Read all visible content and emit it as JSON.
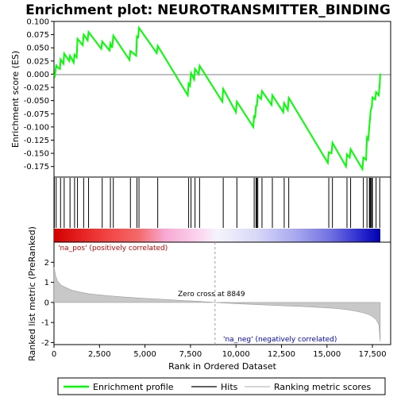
{
  "chart_data": {
    "type": "line",
    "title": "Enrichment plot: NEUROTRANSMITTER_BINDING",
    "top_panel": {
      "ylabel": "Enrichment score (ES)",
      "ylim": [
        -0.195,
        0.1
      ],
      "yticks": [
        -0.175,
        -0.15,
        -0.125,
        -0.1,
        -0.075,
        -0.05,
        -0.025,
        0.0,
        0.025,
        0.05,
        0.075,
        0.1
      ],
      "ytick_labels": [
        "-0.175",
        "-0.150",
        "-0.125",
        "-0.100",
        "-0.075",
        "-0.050",
        "-0.025",
        "0.000",
        "0.025",
        "0.050",
        "0.075",
        "0.100"
      ],
      "series_name": "Enrichment profile",
      "color": "#00ff00",
      "es_curve": [
        [
          0,
          0.0
        ],
        [
          50,
          -0.003
        ],
        [
          120,
          0.018
        ],
        [
          180,
          0.013
        ],
        [
          330,
          0.01
        ],
        [
          360,
          0.028
        ],
        [
          520,
          0.02
        ],
        [
          560,
          0.039
        ],
        [
          840,
          0.025
        ],
        [
          880,
          0.035
        ],
        [
          1080,
          0.022
        ],
        [
          1130,
          0.037
        ],
        [
          1250,
          0.032
        ],
        [
          1290,
          0.067
        ],
        [
          1580,
          0.055
        ],
        [
          1630,
          0.075
        ],
        [
          1850,
          0.064
        ],
        [
          1900,
          0.08
        ],
        [
          2600,
          0.048
        ],
        [
          2650,
          0.062
        ],
        [
          3050,
          0.045
        ],
        [
          3100,
          0.058
        ],
        [
          3200,
          0.05
        ],
        [
          3260,
          0.073
        ],
        [
          4150,
          0.027
        ],
        [
          4200,
          0.044
        ],
        [
          4520,
          0.035
        ],
        [
          4560,
          0.073
        ],
        [
          4620,
          0.068
        ],
        [
          4670,
          0.088
        ],
        [
          5650,
          0.04
        ],
        [
          5700,
          0.054
        ],
        [
          7350,
          -0.04
        ],
        [
          7400,
          -0.018
        ],
        [
          7480,
          -0.022
        ],
        [
          7530,
          0.002
        ],
        [
          7700,
          -0.01
        ],
        [
          7750,
          0.01
        ],
        [
          7950,
          0.0
        ],
        [
          8000,
          0.016
        ],
        [
          9250,
          -0.052
        ],
        [
          9300,
          -0.028
        ],
        [
          10000,
          -0.072
        ],
        [
          10050,
          -0.052
        ],
        [
          10950,
          -0.1
        ],
        [
          11000,
          -0.078
        ],
        [
          11050,
          -0.083
        ],
        [
          11100,
          -0.06
        ],
        [
          11150,
          -0.06
        ],
        [
          11200,
          -0.04
        ],
        [
          11380,
          -0.047
        ],
        [
          11430,
          -0.032
        ],
        [
          11950,
          -0.058
        ],
        [
          12000,
          -0.04
        ],
        [
          12600,
          -0.072
        ],
        [
          12650,
          -0.055
        ],
        [
          12850,
          -0.068
        ],
        [
          12900,
          -0.045
        ],
        [
          15050,
          -0.168
        ],
        [
          15100,
          -0.148
        ],
        [
          15250,
          -0.15
        ],
        [
          15300,
          -0.13
        ],
        [
          16050,
          -0.175
        ],
        [
          16100,
          -0.152
        ],
        [
          16250,
          -0.158
        ],
        [
          16300,
          -0.142
        ],
        [
          16950,
          -0.18
        ],
        [
          17000,
          -0.158
        ],
        [
          17150,
          -0.162
        ],
        [
          17200,
          -0.12
        ],
        [
          17270,
          -0.124
        ],
        [
          17330,
          -0.098
        ],
        [
          17370,
          -0.083
        ],
        [
          17400,
          -0.07
        ],
        [
          17460,
          -0.062
        ],
        [
          17500,
          -0.044
        ],
        [
          17650,
          -0.048
        ],
        [
          17700,
          -0.034
        ],
        [
          17850,
          -0.04
        ],
        [
          17900,
          -0.018
        ],
        [
          17930,
          0.001
        ]
      ]
    },
    "hits_panel": {
      "series_name": "Hits",
      "positions": [
        20,
        120,
        360,
        560,
        880,
        1130,
        1290,
        1630,
        1900,
        2650,
        3100,
        3260,
        4200,
        4560,
        4670,
        5700,
        7400,
        7530,
        7750,
        8000,
        9300,
        10050,
        11000,
        11100,
        11150,
        11200,
        11430,
        12000,
        12650,
        12900,
        15100,
        15300,
        16100,
        16300,
        17000,
        17200,
        17330,
        17370,
        17400,
        17460,
        17500,
        17700,
        17900
      ]
    },
    "rank_panel": {
      "series_name": "Ranking metric scores",
      "xlabel": "Rank in Ordered Dataset",
      "ylabel": "Ranked list metric (PreRanked)",
      "xlim": [
        0,
        18500
      ],
      "ylim": [
        -2.1,
        3.0
      ],
      "xticks": [
        0,
        2500,
        5000,
        7500,
        10000,
        12500,
        15000,
        17500
      ],
      "xtick_labels": [
        "0",
        "2,500",
        "5,000",
        "7,500",
        "10,000",
        "12,500",
        "15,000",
        "17,500"
      ],
      "yticks": [
        -2,
        -1,
        0,
        1,
        2
      ],
      "ytick_labels": [
        "-2",
        "-1",
        "0",
        "1",
        "2"
      ],
      "metric_curve": [
        [
          0,
          1.75
        ],
        [
          100,
          1.3
        ],
        [
          200,
          1.05
        ],
        [
          400,
          0.85
        ],
        [
          700,
          0.72
        ],
        [
          1000,
          0.6
        ],
        [
          1500,
          0.5
        ],
        [
          2000,
          0.42
        ],
        [
          3000,
          0.33
        ],
        [
          4000,
          0.26
        ],
        [
          5000,
          0.2
        ],
        [
          6000,
          0.15
        ],
        [
          7000,
          0.1
        ],
        [
          8000,
          0.05
        ],
        [
          8849,
          0.0
        ],
        [
          10000,
          -0.06
        ],
        [
          11000,
          -0.1
        ],
        [
          12000,
          -0.14
        ],
        [
          13000,
          -0.18
        ],
        [
          14000,
          -0.22
        ],
        [
          15000,
          -0.27
        ],
        [
          15500,
          -0.3
        ],
        [
          16000,
          -0.35
        ],
        [
          16500,
          -0.42
        ],
        [
          17000,
          -0.52
        ],
        [
          17300,
          -0.6
        ],
        [
          17500,
          -0.7
        ],
        [
          17700,
          -0.85
        ],
        [
          17850,
          -1.1
        ],
        [
          17930,
          -1.95
        ]
      ],
      "zero_cross_label": "Zero cross at 8849",
      "zero_cross": 8849,
      "pos_label": "'na_pos' (positively correlated)",
      "neg_label": "'na_neg' (negatively correlated)",
      "pos_color": "#cc0000",
      "neg_color": "#0000cc"
    },
    "legend": {
      "entries": [
        "Enrichment profile",
        "Hits",
        "Ranking metric scores"
      ],
      "placement": "bottom"
    }
  }
}
